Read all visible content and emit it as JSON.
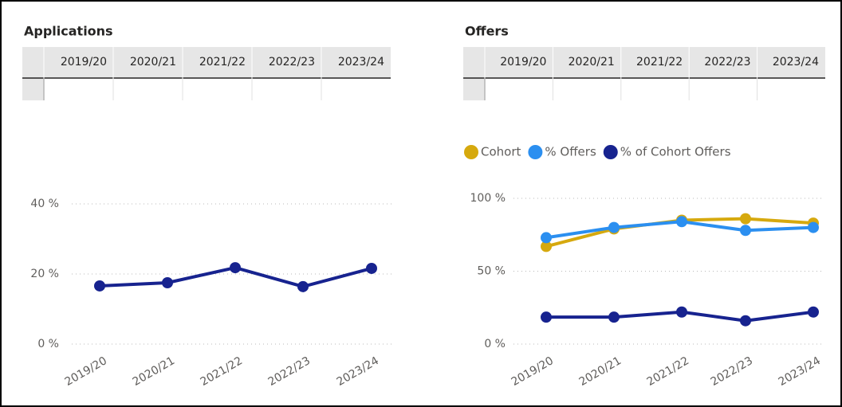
{
  "chart_data": [
    {
      "type": "line",
      "title": "Applications",
      "table_columns": [
        "2019/20",
        "2020/21",
        "2021/22",
        "2022/23",
        "2023/24"
      ],
      "categories": [
        "2019/20",
        "2020/21",
        "2021/22",
        "2022/23",
        "2023/24"
      ],
      "series": [
        {
          "name": null,
          "color": "#17238f",
          "values": [
            16.6,
            17.5,
            21.8,
            16.4,
            21.6
          ]
        }
      ],
      "ylim": [
        0,
        60
      ],
      "yticks": [
        {
          "value": 0,
          "label": "0 %"
        },
        {
          "value": 20,
          "label": "20 %"
        },
        {
          "value": 40,
          "label": "40 %"
        }
      ],
      "grid": true,
      "legend": false
    },
    {
      "type": "line",
      "title": "Offers",
      "table_columns": [
        "2019/20",
        "2020/21",
        "2021/22",
        "2022/23",
        "2023/24"
      ],
      "categories": [
        "2019/20",
        "2020/21",
        "2021/22",
        "2022/23",
        "2023/24"
      ],
      "series": [
        {
          "name": "Cohort",
          "color": "#d6a90e",
          "values": [
            67,
            79,
            85,
            86,
            83
          ]
        },
        {
          "name": "% Offers",
          "color": "#2b8ff0",
          "values": [
            73,
            80,
            84,
            78,
            80
          ]
        },
        {
          "name": "% of Cohort Offers",
          "color": "#17238f",
          "values": [
            18.5,
            18.5,
            22,
            16,
            22
          ]
        }
      ],
      "ylim": [
        0,
        100
      ],
      "yticks": [
        {
          "value": 0,
          "label": "0 %"
        },
        {
          "value": 50,
          "label": "50 %"
        },
        {
          "value": 100,
          "label": "100 %"
        }
      ],
      "grid": true,
      "legend": "top-left"
    }
  ]
}
